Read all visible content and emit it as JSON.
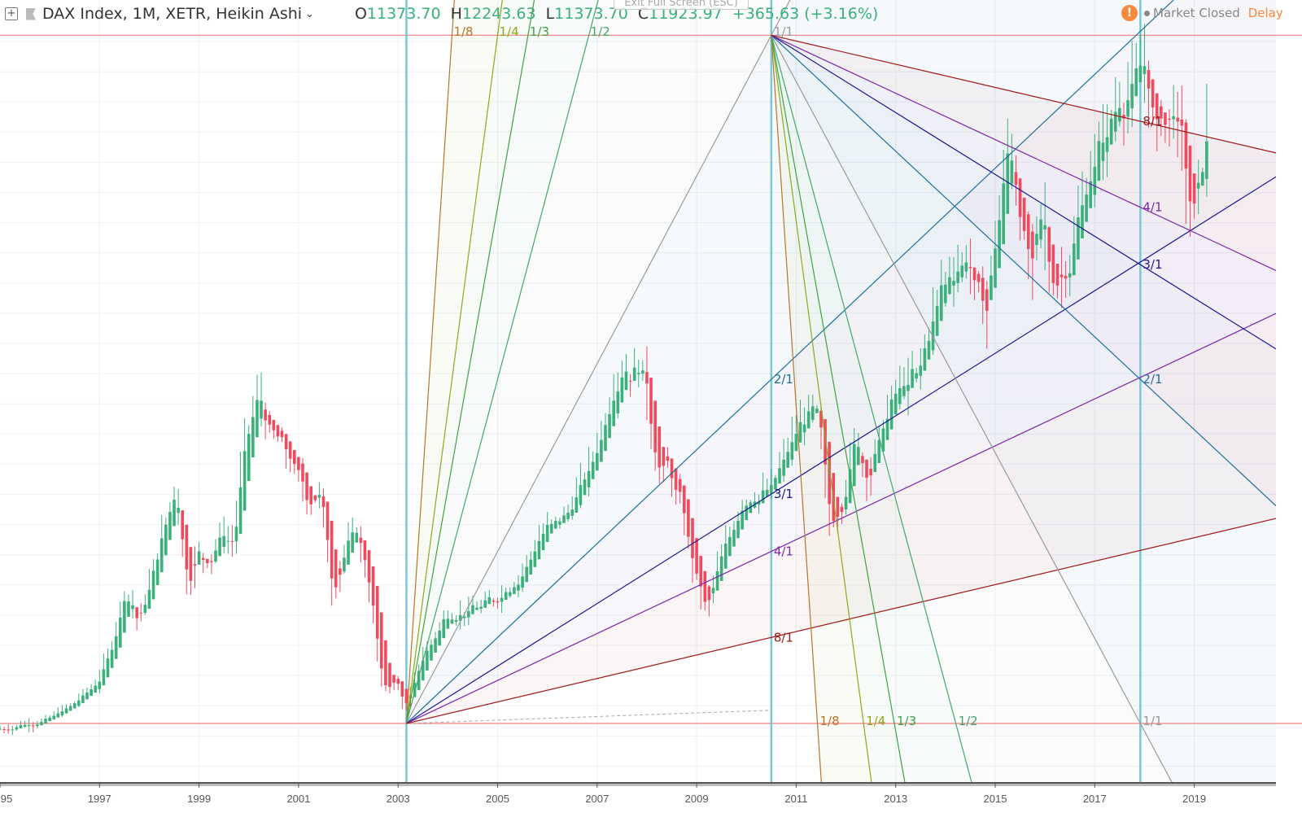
{
  "header": {
    "symbol": "DAX Index, 1M, XETR, Heikin Ashi",
    "open_label": "O",
    "open": "11373.70",
    "high_label": "H",
    "high": "12243.63",
    "low_label": "L",
    "low": "11373.70",
    "close_label": "C",
    "close": "11923.97",
    "change": "+365.63 (+3.16%)",
    "exit_fullscreen": "Exit Full Screen (ESC)",
    "market_status": "Market Closed",
    "delay": "Delay"
  },
  "colors": {
    "up": "#3bb07a",
    "down": "#ef4a5e",
    "vertical_lines": "#7cc7d6",
    "horizontal_lines": "#f08080",
    "status_warn": "#f58a3c"
  },
  "chart_data": {
    "type": "candlestick",
    "style": "Heikin Ashi",
    "interval": "1M",
    "y_scale": "linear",
    "price_axis_visible": false,
    "grid": true,
    "x_ticks": [
      "95",
      "1997",
      "1999",
      "2001",
      "2003",
      "2005",
      "2007",
      "2009",
      "2011",
      "2013",
      "2015",
      "2017",
      "2019"
    ],
    "xlim": [
      "1995-01",
      "2022-08"
    ],
    "ylim": [
      -100,
      14300
    ],
    "price_keyframes": [
      [
        "1995-01",
        2100
      ],
      [
        "1995-12",
        2250
      ],
      [
        "1996-06",
        2500
      ],
      [
        "1996-12",
        2850
      ],
      [
        "1997-03",
        3300
      ],
      [
        "1997-07",
        4400
      ],
      [
        "1997-10",
        3900
      ],
      [
        "1997-12",
        4250
      ],
      [
        "1998-03",
        5100
      ],
      [
        "1998-07",
        6100
      ],
      [
        "1998-10",
        4500
      ],
      [
        "1998-12",
        5000
      ],
      [
        "1999-03",
        4900
      ],
      [
        "1999-06",
        5300
      ],
      [
        "1999-09",
        5200
      ],
      [
        "1999-12",
        6900
      ],
      [
        "2000-03",
        7600
      ],
      [
        "2000-06",
        7000
      ],
      [
        "2000-09",
        6800
      ],
      [
        "2000-12",
        6400
      ],
      [
        "2001-03",
        5900
      ],
      [
        "2001-06",
        6000
      ],
      [
        "2001-09",
        4400
      ],
      [
        "2001-12",
        5100
      ],
      [
        "2002-03",
        5400
      ],
      [
        "2002-06",
        4400
      ],
      [
        "2002-09",
        2800
      ],
      [
        "2002-12",
        2900
      ],
      [
        "2003-03",
        2450
      ],
      [
        "2003-06",
        3200
      ],
      [
        "2003-12",
        3950
      ],
      [
        "2004-06",
        4050
      ],
      [
        "2004-12",
        4250
      ],
      [
        "2005-06",
        4600
      ],
      [
        "2005-12",
        5400
      ],
      [
        "2006-06",
        5700
      ],
      [
        "2006-12",
        6600
      ],
      [
        "2007-06",
        8000
      ],
      [
        "2007-12",
        8050
      ],
      [
        "2008-03",
        6500
      ],
      [
        "2008-06",
        6400
      ],
      [
        "2008-09",
        5800
      ],
      [
        "2008-12",
        4800
      ],
      [
        "2009-03",
        4100
      ],
      [
        "2009-06",
        4800
      ],
      [
        "2009-12",
        5900
      ],
      [
        "2010-06",
        6000
      ],
      [
        "2010-12",
        6900
      ],
      [
        "2011-04",
        7400
      ],
      [
        "2011-06",
        7300
      ],
      [
        "2011-09",
        5500
      ],
      [
        "2011-12",
        5900
      ],
      [
        "2012-03",
        6900
      ],
      [
        "2012-06",
        6300
      ],
      [
        "2012-12",
        7600
      ],
      [
        "2013-06",
        8000
      ],
      [
        "2013-12",
        9500
      ],
      [
        "2014-06",
        9900
      ],
      [
        "2014-10",
        9000
      ],
      [
        "2014-12",
        9800
      ],
      [
        "2015-04",
        11800
      ],
      [
        "2015-09",
        9700
      ],
      [
        "2015-12",
        10700
      ],
      [
        "2016-02",
        9500
      ],
      [
        "2016-06",
        9700
      ],
      [
        "2016-12",
        11400
      ],
      [
        "2017-06",
        12400
      ],
      [
        "2017-12",
        12900
      ],
      [
        "2018-01",
        13200
      ],
      [
        "2018-03",
        12100
      ],
      [
        "2018-06",
        12300
      ],
      [
        "2018-09",
        12200
      ],
      [
        "2018-12",
        10600
      ],
      [
        "2019-03",
        11500
      ],
      [
        "2019-04",
        12200
      ]
    ],
    "horizontal_lines": [
      13600,
      2200
    ],
    "vertical_lines": [
      "2003-03",
      "2010-07",
      "2017-12"
    ],
    "gann_fans": [
      {
        "anchor": {
          "date": "2003-03",
          "price": 2200
        },
        "corner": {
          "date": "2010-07",
          "price": 13600
        }
      },
      {
        "anchor": {
          "date": "2010-07",
          "price": 13600
        },
        "corner": {
          "date": "2017-12",
          "price": 2200
        }
      }
    ],
    "fan_levels": [
      {
        "label": "1/8",
        "color": "#b8742a"
      },
      {
        "label": "1/4",
        "color": "#8aaa1c"
      },
      {
        "label": "1/3",
        "color": "#3ea33e"
      },
      {
        "label": "1/2",
        "color": "#41a86a"
      },
      {
        "label": "1/1",
        "color": "#9a9a9a"
      },
      {
        "label": "2/1",
        "color": "#1e6e9c"
      },
      {
        "label": "3/1",
        "color": "#1a1a90"
      },
      {
        "label": "4/1",
        "color": "#7a2aa8"
      },
      {
        "label": "8/1",
        "color": "#a01818"
      }
    ],
    "trend_line": {
      "from": {
        "date": "2003-03",
        "price": 2200
      },
      "to": {
        "date": "2010-07",
        "price": 2420
      }
    }
  }
}
